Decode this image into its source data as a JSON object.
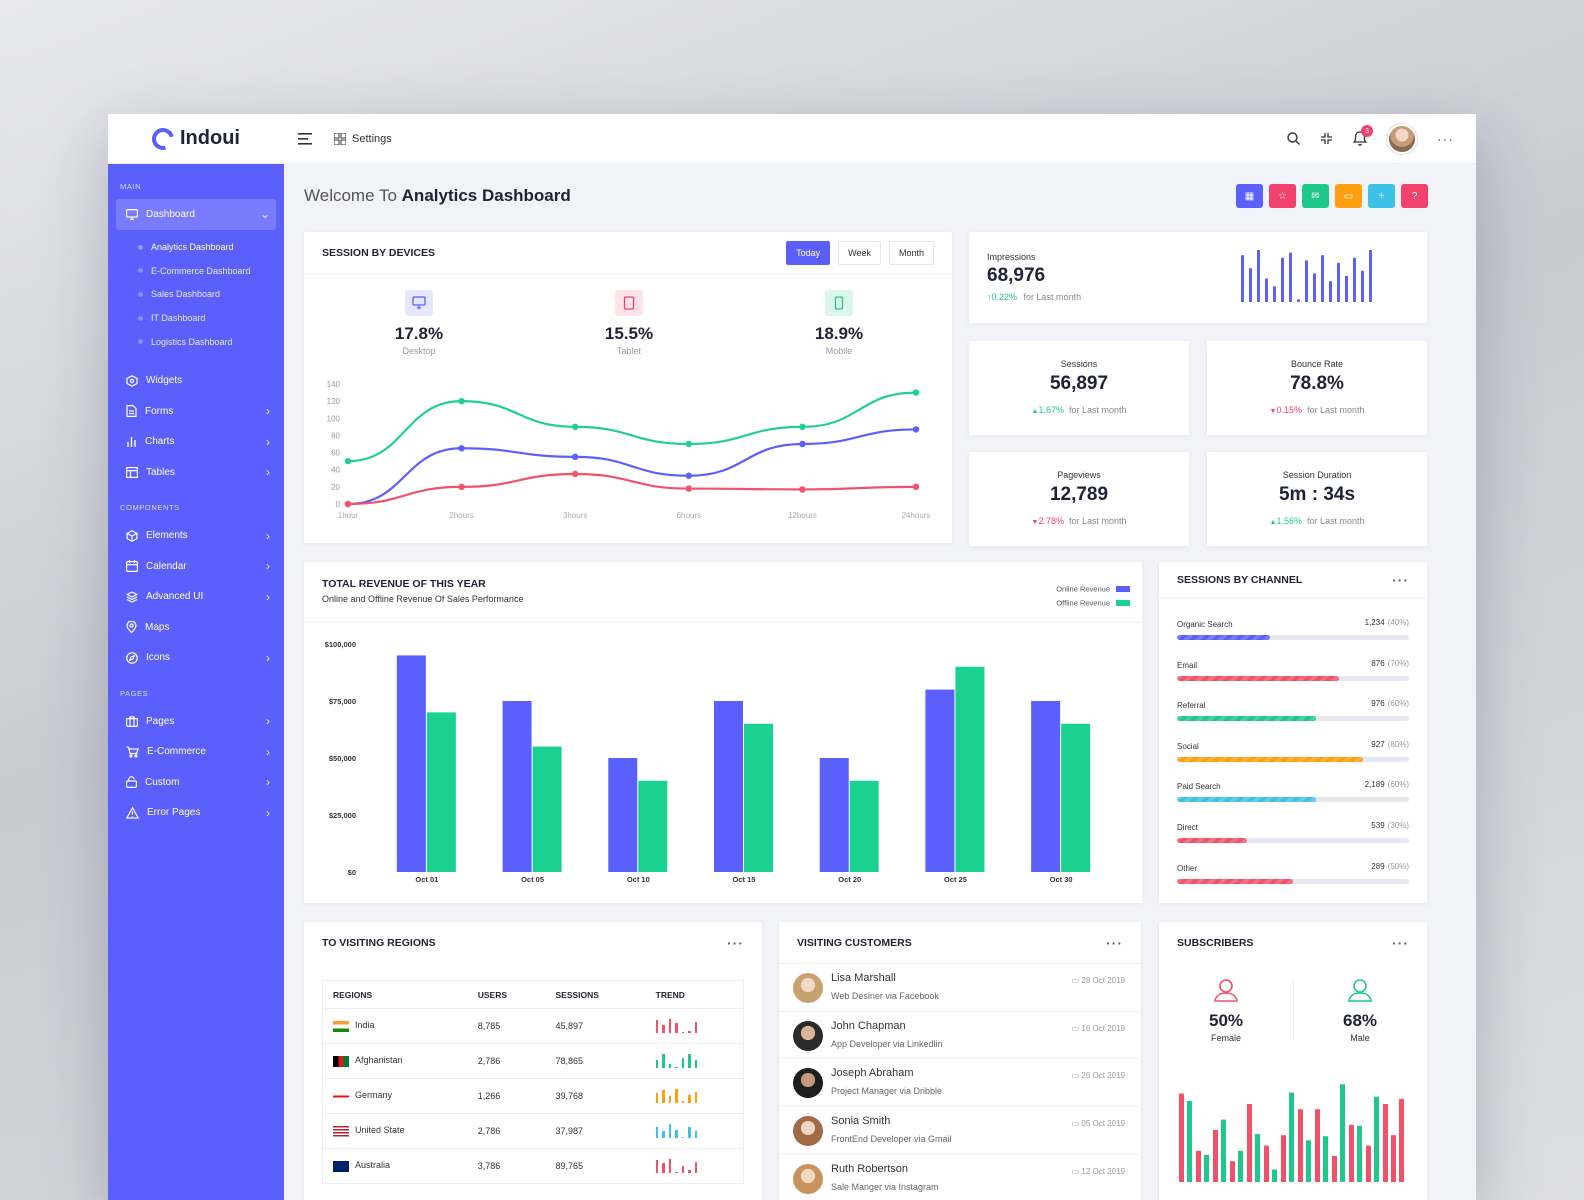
{
  "app": {
    "name": "Indoui"
  },
  "topbar": {
    "settings_label": "Settings",
    "notification_count": "3"
  },
  "sidebar": {
    "sections": {
      "main": "MAIN",
      "components": "COMPONENTS",
      "pages": "PAGES"
    },
    "dashboard": {
      "label": "Dashboard",
      "sub": [
        "Analytics Dashboard",
        "E-Commerce Dashboard",
        "Sales Dashboard",
        "IT Dashboard",
        "Logistics Dashboard"
      ]
    },
    "main_items": [
      "Widgets",
      "Forms",
      "Charts",
      "Tables"
    ],
    "component_items": [
      "Elements",
      "Calendar",
      "Advanced UI",
      "Maps",
      "Icons"
    ],
    "page_items": [
      "Pages",
      "E-Commerce",
      "Custom",
      "Error Pages"
    ]
  },
  "page": {
    "welcome_prefix": "Welcome To",
    "welcome_title": "Analytics Dashboard"
  },
  "quick_buttons": [
    {
      "icon": "calendar-icon",
      "color": "#5b5ffb"
    },
    {
      "icon": "star-icon",
      "color": "#f1416c"
    },
    {
      "icon": "mail-icon",
      "color": "#1fc78a"
    },
    {
      "icon": "chat-icon",
      "color": "#ff9f0f"
    },
    {
      "icon": "plus-icon",
      "color": "#3ec1e6"
    },
    {
      "icon": "help-icon",
      "color": "#f1416c"
    }
  ],
  "session_devices": {
    "title": "SESSION BY DEVICES",
    "tabs": [
      "Today",
      "Week",
      "Month"
    ],
    "devices": [
      {
        "pct": "17.8%",
        "label": "Desktop",
        "color": "#5b5ffb",
        "bg": "#e6e7fe",
        "icon": "monitor-icon"
      },
      {
        "pct": "15.5%",
        "label": "Tablet",
        "color": "#f1416c",
        "bg": "#fde3e7",
        "icon": "tablet-icon"
      },
      {
        "pct": "18.9%",
        "label": "Mobile",
        "color": "#1fc78a",
        "bg": "#dcf6ec",
        "icon": "mobile-icon"
      }
    ]
  },
  "chart_data": [
    {
      "type": "line",
      "x": [
        "1hour",
        "2hours",
        "3hours",
        "6hours",
        "12hours",
        "24hours"
      ],
      "yticks": [
        0,
        20,
        40,
        60,
        80,
        100,
        120,
        140
      ],
      "ylim": [
        0,
        140
      ],
      "series": [
        {
          "values": [
            50,
            120,
            90,
            70,
            90,
            130
          ],
          "color": "#1fd08e"
        },
        {
          "values": [
            0,
            65,
            55,
            33,
            70,
            87
          ],
          "color": "#5b5ffb"
        },
        {
          "values": [
            0,
            20,
            35,
            18,
            17,
            20
          ],
          "color": "#f1526a"
        }
      ]
    },
    {
      "type": "bar",
      "title": "TOTAL REVENUE OF THIS YEAR",
      "subtitle": "Online and Offline Revenue Of Sales Performance",
      "categories": [
        "Oct 01",
        "Oct 05",
        "Oct 10",
        "Oct 15",
        "Oct 20",
        "Oct 25",
        "Oct 30"
      ],
      "yticks": [
        "$0",
        "$25,000",
        "$50,000",
        "$75,000",
        "$100,000"
      ],
      "ylim": [
        0,
        100000
      ],
      "series": [
        {
          "name": "Online Revenue",
          "color": "#5b5ffb",
          "values": [
            95000,
            75000,
            50000,
            75000,
            50000,
            80000,
            75000
          ]
        },
        {
          "name": "Offline Revenue",
          "color": "#1ad18f",
          "values": [
            70000,
            55000,
            40000,
            65000,
            40000,
            90000,
            65000
          ]
        }
      ]
    },
    {
      "type": "bar",
      "values": [
        0.85,
        0.3,
        0.5,
        0.2,
        0.75,
        0.35,
        0.45,
        0.7,
        0.7,
        0.25,
        0.55,
        0.35,
        0.75,
        0.45,
        0.8
      ]
    },
    {
      "type": "bar",
      "values": [
        0.78,
        0.26,
        0.6,
        0.3,
        0.46,
        0.12,
        0.86,
        0.4,
        0.44,
        0.94,
        0.54,
        0.82
      ]
    }
  ],
  "impressions": {
    "title": "Impressions",
    "value": "68,976",
    "change": "0.22%",
    "note": "for Last month"
  },
  "stats": [
    {
      "title": "Sessions",
      "value": "56,897",
      "change": "1.67%",
      "dir": "up",
      "note": "for Last month"
    },
    {
      "title": "Bounce Rate",
      "value": "78.8%",
      "change": "0.15%",
      "dir": "dn",
      "note": "for Last month"
    },
    {
      "title": "Pageviews",
      "value": "12,789",
      "change": "2.78%",
      "dir": "dn",
      "note": "for Last month"
    },
    {
      "title": "Session Duration",
      "value": "5m : 34s",
      "change": "1.56%",
      "dir": "up",
      "note": "for Last month"
    }
  ],
  "channels": {
    "title": "SESSIONS BY CHANNEL",
    "rows": [
      {
        "name": "Organic Search",
        "value": "1,234",
        "pct": "(40%)",
        "fill": 0.4,
        "color": "#5b5ffb"
      },
      {
        "name": "Email",
        "value": "876",
        "pct": "(70%)",
        "fill": 0.7,
        "color": "#f1526a"
      },
      {
        "name": "Referral",
        "value": "976",
        "pct": "(60%)",
        "fill": 0.6,
        "color": "#1fc78a"
      },
      {
        "name": "Social",
        "value": "927",
        "pct": "(80%)",
        "fill": 0.8,
        "color": "#ff9f0f"
      },
      {
        "name": "Paid Search",
        "value": "2,189",
        "pct": "(60%)",
        "fill": 0.6,
        "color": "#3ec1e6"
      },
      {
        "name": "Direct",
        "value": "539",
        "pct": "(30%)",
        "fill": 0.3,
        "color": "#f1526a"
      },
      {
        "name": "Other",
        "value": "289",
        "pct": "(50%)",
        "fill": 0.5,
        "color": "#f1526a"
      }
    ]
  },
  "regions": {
    "title": "TO VISITING REGIONS",
    "headers": [
      "REGIONS",
      "USERS",
      "SESSIONS",
      "TREND"
    ],
    "rows": [
      {
        "region": "India",
        "users": "8,785",
        "sessions": "45,897",
        "color": "#f1526a"
      },
      {
        "region": "Afghanistan",
        "users": "2,786",
        "sessions": "78,865",
        "color": "#1fc78a"
      },
      {
        "region": "Germany",
        "users": "1,266",
        "sessions": "39,768",
        "color": "#ff9f0f"
      },
      {
        "region": "United State",
        "users": "2,786",
        "sessions": "37,987",
        "color": "#3ec1e6"
      },
      {
        "region": "Australia",
        "users": "3,786",
        "sessions": "89,765",
        "color": "#f1526a"
      }
    ]
  },
  "customers": {
    "title": "VISITING CUSTOMERS",
    "rows": [
      {
        "name": "Lisa Marshall",
        "sub": "Web Desiner via Facebook",
        "date": "28 Oct 2019"
      },
      {
        "name": "John Chapman",
        "sub": "App Developer via Linkedlin",
        "date": "16 Oct 2019"
      },
      {
        "name": "Joseph Abraham",
        "sub": "Project Manager via Dribble",
        "date": "26 Oct 2019"
      },
      {
        "name": "Sonia Smith",
        "sub": "FrontEnd Developer via Gmail",
        "date": "05 Oct 2019"
      },
      {
        "name": "Ruth Robertson",
        "sub": "Sale Manger via Instagram",
        "date": "12 Oct 2019"
      }
    ]
  },
  "subscribers": {
    "title": "SUBSCRIBERS",
    "female": {
      "pct": "50%",
      "label": "Female"
    },
    "male": {
      "pct": "68%",
      "label": "Male"
    }
  }
}
